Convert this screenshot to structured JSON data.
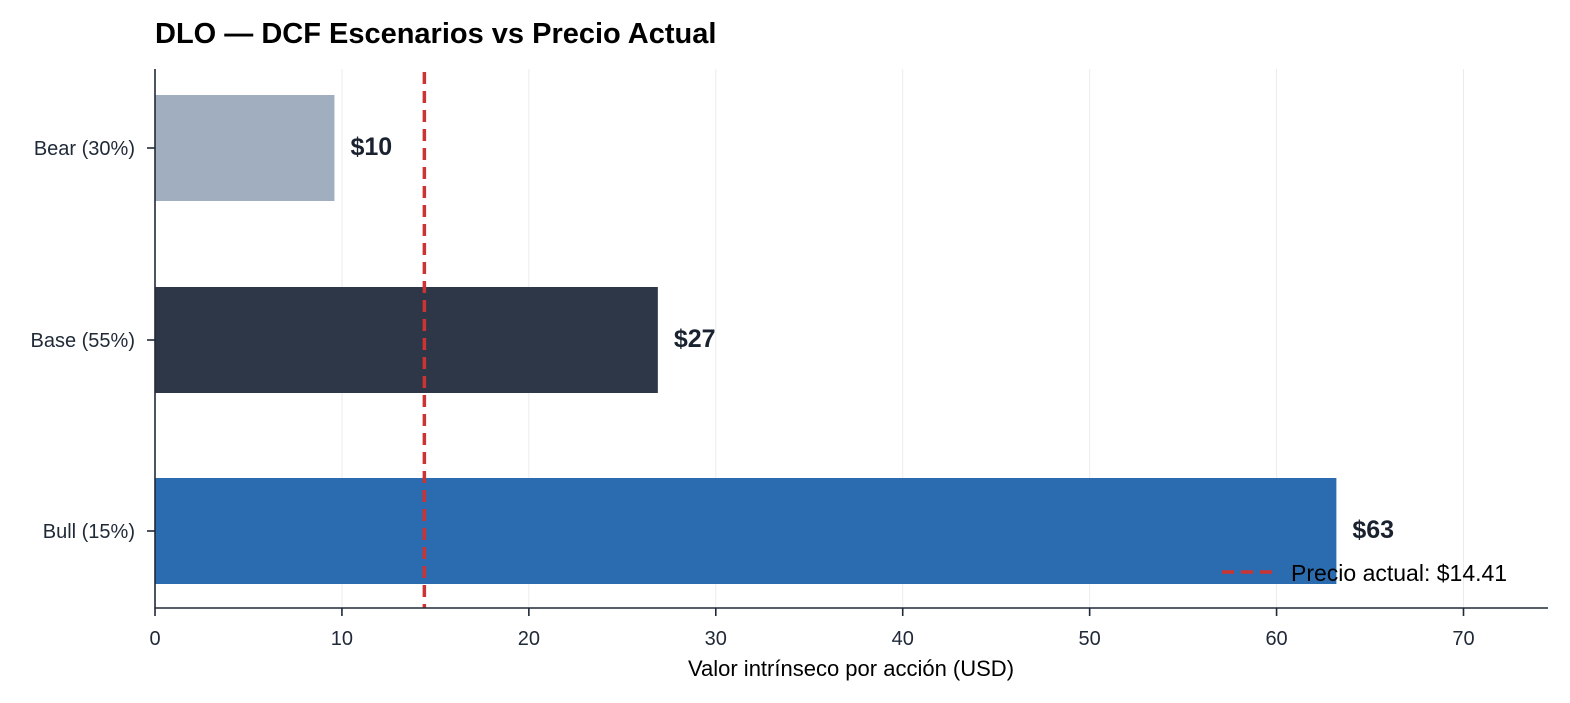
{
  "chart_data": {
    "type": "bar",
    "orientation": "horizontal",
    "title": "DLO — DCF Escenarios vs Precio Actual",
    "xlabel": "Valor intrínseco por acción (USD)",
    "ylabel": "",
    "xlim": [
      0,
      74.5
    ],
    "x_ticks": [
      "0",
      "10",
      "20",
      "30",
      "40",
      "50",
      "60",
      "70"
    ],
    "grid": "vertical",
    "categories": [
      "Bear (30%)",
      "Base (55%)",
      "Bull (15%)"
    ],
    "values": [
      9.6,
      26.9,
      63.2
    ],
    "data_labels": [
      "$10",
      "$27",
      "$63"
    ],
    "colors": [
      "#a1aec0",
      "#2e3748",
      "#2b6cb0"
    ],
    "reference_line": {
      "value": 14.41,
      "label": "Precio actual: $14.41",
      "color": "#cc3333",
      "style": "dashed"
    },
    "legend": {
      "position": "bottom-right"
    }
  }
}
